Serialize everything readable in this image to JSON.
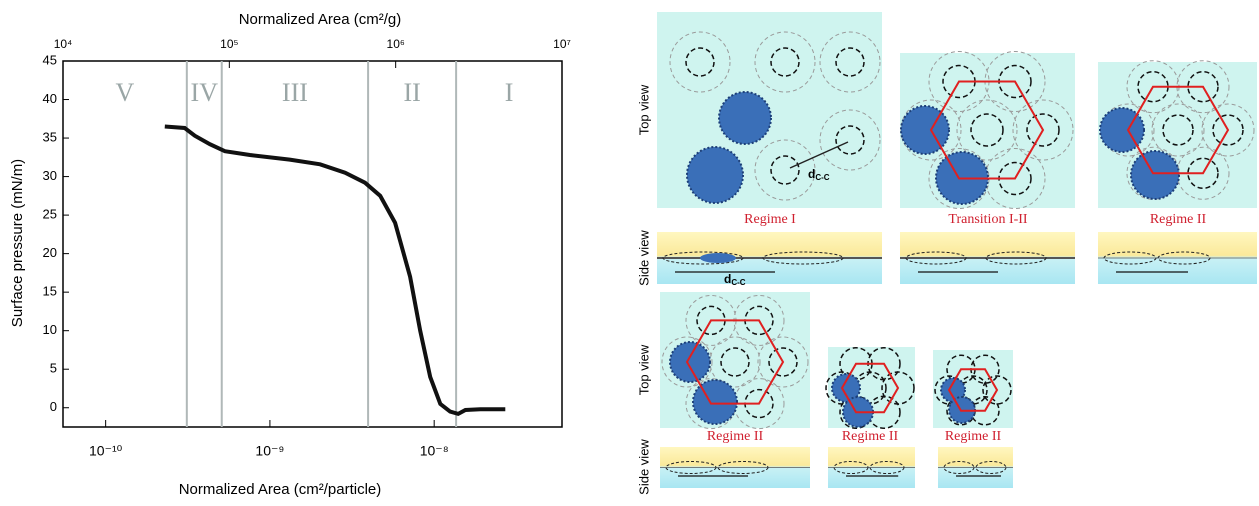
{
  "chart_data": {
    "type": "line",
    "xlabel": "Normalized Area (cm²/particle)",
    "x2label": "Normalized Area (cm²/g)",
    "ylabel": "Surface pressure (mN/m)",
    "xscale": "log",
    "xlim": [
      5.5e-11,
      6e-08
    ],
    "xticks": [
      {
        "value": 1e-10,
        "label": "10⁻¹⁰"
      },
      {
        "value": 1e-09,
        "label": "10⁻⁹"
      },
      {
        "value": 1e-08,
        "label": "10⁻⁸"
      }
    ],
    "x2lim": [
      10000,
      10000000
    ],
    "x2ticks": [
      {
        "value": 10000,
        "label": "10⁴"
      },
      {
        "value": 100000,
        "label": "10⁵"
      },
      {
        "value": 1000000,
        "label": "10⁶"
      },
      {
        "value": 10000000,
        "label": "10⁷"
      }
    ],
    "ylim": [
      -2.5,
      45
    ],
    "yticks": [
      0,
      5,
      10,
      15,
      20,
      25,
      30,
      35,
      40,
      45
    ],
    "color": "#111111",
    "x": [
      2.29e-10,
      3.03e-10,
      3.49e-10,
      4.31e-10,
      5.32e-10,
      7.55e-10,
      1.32e-09,
      2.02e-09,
      2.87e-09,
      3.79e-09,
      4.69e-09,
      5.78e-09,
      7.14e-09,
      8.22e-09,
      9.46e-09,
      1.09e-08,
      1.25e-08,
      1.4e-08,
      1.55e-08,
      1.91e-08,
      2.71e-08
    ],
    "values": [
      36.5,
      36.3,
      35.3,
      34.2,
      33.3,
      32.8,
      32.2,
      31.6,
      30.5,
      29.2,
      27.5,
      24,
      17,
      10,
      4,
      0.5,
      -0.5,
      -0.8,
      -0.3,
      -0.2,
      -0.2
    ],
    "regime_boundaries": [
      3.12e-10,
      5.09e-10,
      3.96e-09,
      1.36e-08
    ],
    "regime_labels": [
      "V",
      "IV",
      "III",
      "II",
      "I"
    ],
    "boundary_color": "#b0b8b8"
  },
  "schematic": {
    "row_labels": [
      "Top view",
      "Side view",
      "Top view",
      "Side view"
    ],
    "panel_labels": [
      "Regime I",
      "Transition I-II",
      "Regime II",
      "Regime II",
      "Regime II",
      "Regime II"
    ],
    "distance": {
      "symbol": "d",
      "subscript": "C-C"
    }
  }
}
